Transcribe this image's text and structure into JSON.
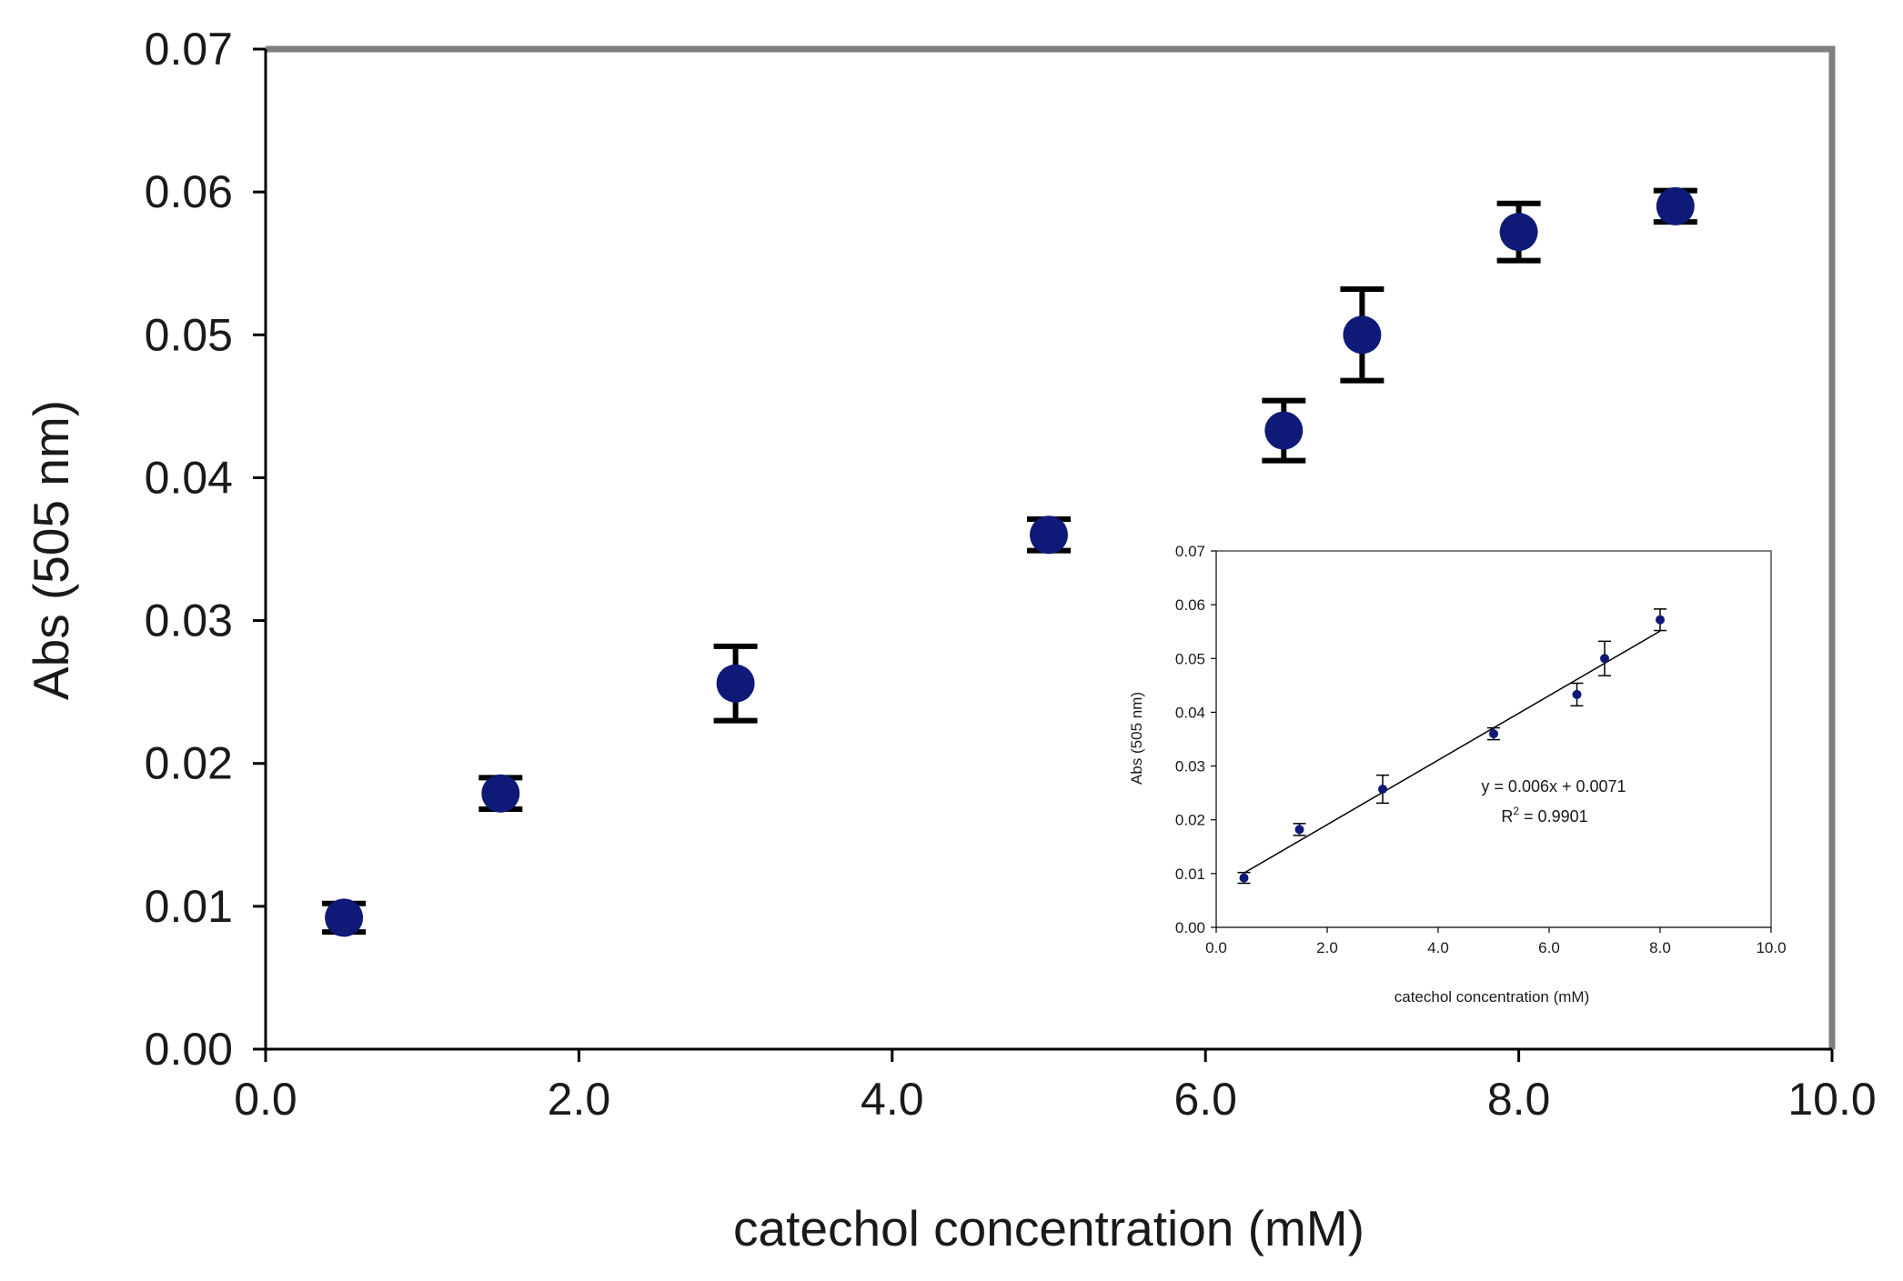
{
  "chart_data": [
    {
      "type": "scatter",
      "xlabel": "catechol concentration (mM)",
      "ylabel": "Abs (505 nm)",
      "xlim": [
        0,
        10
      ],
      "ylim": [
        0,
        0.07
      ],
      "x_ticks": [
        "0.0",
        "2.0",
        "4.0",
        "6.0",
        "8.0",
        "10.0"
      ],
      "y_ticks": [
        "0.00",
        "0.01",
        "0.02",
        "0.03",
        "0.04",
        "0.05",
        "0.06",
        "0.07"
      ],
      "grid": false,
      "series": [
        {
          "x": [
            0.5,
            1.5,
            3.0,
            5.0,
            6.5,
            7.0,
            8.0,
            9.0
          ],
          "y": [
            0.0092,
            0.0179,
            0.0256,
            0.036,
            0.0433,
            0.05,
            0.0572,
            0.059
          ],
          "error": [
            0.001,
            0.0011,
            0.0026,
            0.0011,
            0.0021,
            0.0032,
            0.002,
            0.0011
          ]
        }
      ],
      "colors": {
        "marker": "#0f1a78",
        "errorbar": "#000000",
        "plot_border": "#7f7f7f"
      }
    },
    {
      "type": "scatter",
      "xlabel": "catechol concentration (mM)",
      "ylabel": "Abs (505 nm)",
      "xlim": [
        0,
        10
      ],
      "ylim": [
        0,
        0.07
      ],
      "x_ticks": [
        "0.0",
        "2.0",
        "4.0",
        "6.0",
        "8.0",
        "10.0"
      ],
      "y_ticks": [
        "0.00",
        "0.01",
        "0.02",
        "0.03",
        "0.04",
        "0.05",
        "0.06",
        "0.07"
      ],
      "grid": false,
      "series": [
        {
          "x": [
            0.5,
            1.5,
            3.0,
            5.0,
            6.5,
            7.0,
            8.0
          ],
          "y": [
            0.0092,
            0.0182,
            0.0257,
            0.036,
            0.0433,
            0.05,
            0.0572
          ],
          "error": [
            0.001,
            0.0011,
            0.0026,
            0.0011,
            0.0021,
            0.0032,
            0.002
          ]
        }
      ],
      "trendline": {
        "slope": 0.006,
        "intercept": 0.0071,
        "x_range": [
          0.5,
          8.0
        ]
      },
      "annotations": {
        "equation": "y = 0.006x + 0.0071",
        "r2_prefix": "R",
        "r2_sup": "2",
        "r2_value": " = 0.9901"
      },
      "colors": {
        "marker": "#0f1a78",
        "errorbar": "#000000",
        "trendline": "#000000",
        "plot_border": "#555555"
      }
    }
  ]
}
